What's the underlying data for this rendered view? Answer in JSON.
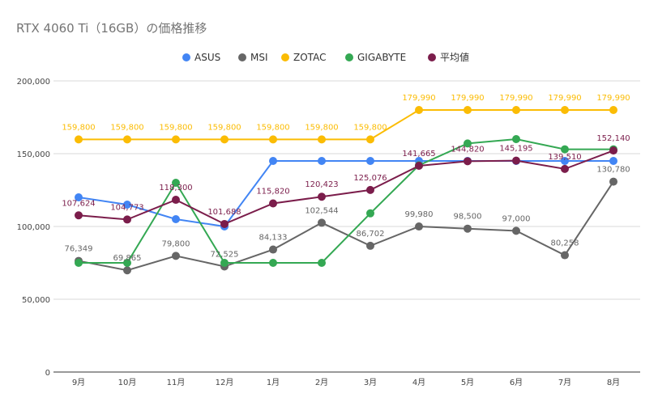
{
  "chart_data": {
    "type": "line",
    "title": "RTX 4060 Ti（16GB）の価格推移",
    "xlabel": "",
    "ylabel": "",
    "categories": [
      "9月",
      "10月",
      "11月",
      "12月",
      "1月",
      "2月",
      "3月",
      "4月",
      "5月",
      "6月",
      "7月",
      "8月"
    ],
    "ylim": [
      0,
      200000
    ],
    "yticks": [
      0,
      50000,
      100000,
      150000,
      200000
    ],
    "ytick_labels": [
      "0",
      "50,000",
      "100,000",
      "150,000",
      "200,000"
    ],
    "grid": true,
    "legend_position": "top-center",
    "series": [
      {
        "name": "ASUS",
        "color": "#4285f4",
        "values": [
          120000,
          115000,
          105000,
          100000,
          145000,
          145000,
          145000,
          145000,
          145000,
          145000,
          145000,
          145000
        ],
        "labels": [
          "",
          "",
          "",
          "",
          "",
          "",
          "",
          "",
          "",
          "",
          "",
          ""
        ]
      },
      {
        "name": "MSI",
        "color": "#666666",
        "values": [
          76349,
          69865,
          79800,
          72525,
          84133,
          102544,
          86702,
          99980,
          98500,
          97000,
          80258,
          130780
        ],
        "labels": [
          "76,349",
          "69,865",
          "79,800",
          "72,525",
          "84,133",
          "102,544",
          "86,702",
          "99,980",
          "98,500",
          "97,000",
          "80,258",
          "130,780"
        ]
      },
      {
        "name": "ZOTAC",
        "color": "#fbbc04",
        "values": [
          159800,
          159800,
          159800,
          159800,
          159800,
          159800,
          159800,
          179990,
          179990,
          179990,
          179990,
          179990
        ],
        "labels": [
          "159,800",
          "159,800",
          "159,800",
          "159,800",
          "159,800",
          "159,800",
          "159,800",
          "179,990",
          "179,990",
          "179,990",
          "179,990",
          "179,990"
        ]
      },
      {
        "name": "GIGABYTE",
        "color": "#34a853",
        "values": [
          75000,
          75000,
          130000,
          75000,
          75000,
          75000,
          109000,
          142000,
          157000,
          160000,
          153000,
          153000
        ],
        "labels": [
          "",
          "",
          "",
          "",
          "",
          "",
          "",
          "",
          "",
          "",
          "",
          ""
        ]
      },
      {
        "name": "平均値",
        "color": "#7b1d4b",
        "values": [
          107624,
          104773,
          118300,
          101688,
          115820,
          120423,
          125076,
          141665,
          144820,
          145195,
          139510,
          152140
        ],
        "labels": [
          "107,624",
          "104,773",
          "118,300",
          "101,688",
          "115,820",
          "120,423",
          "125,076",
          "141,665",
          "144,820",
          "145,195",
          "139,510",
          "152,140"
        ]
      }
    ]
  }
}
